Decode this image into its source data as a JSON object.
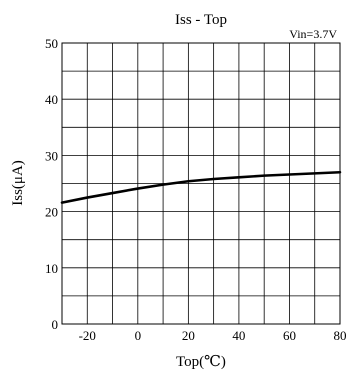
{
  "chart_data": {
    "type": "line",
    "title": "Iss - Top",
    "annotation": "Vin=3.7V",
    "xlabel": "Top(℃)",
    "ylabel": "Iss(μA)",
    "xlim": [
      -30,
      80
    ],
    "ylim": [
      0,
      50
    ],
    "x_ticks": [
      -20,
      0,
      20,
      40,
      60,
      80
    ],
    "y_ticks": [
      0,
      10,
      20,
      30,
      40,
      50
    ],
    "x_tick_labels": [
      "-20",
      "0",
      "20",
      "40",
      "60",
      "80"
    ],
    "y_tick_labels": [
      "0",
      "10",
      "20",
      "30",
      "40",
      "50"
    ],
    "x_minor_step": 10,
    "y_minor_step": 5,
    "grid": true,
    "series": [
      {
        "color": "#000000",
        "x": [
          -30,
          -20,
          -10,
          0,
          10,
          20,
          30,
          40,
          50,
          60,
          70,
          80
        ],
        "y": [
          21.6,
          22.5,
          23.3,
          24.1,
          24.8,
          25.4,
          25.8,
          26.1,
          26.4,
          26.6,
          26.8,
          27.0
        ]
      }
    ]
  }
}
